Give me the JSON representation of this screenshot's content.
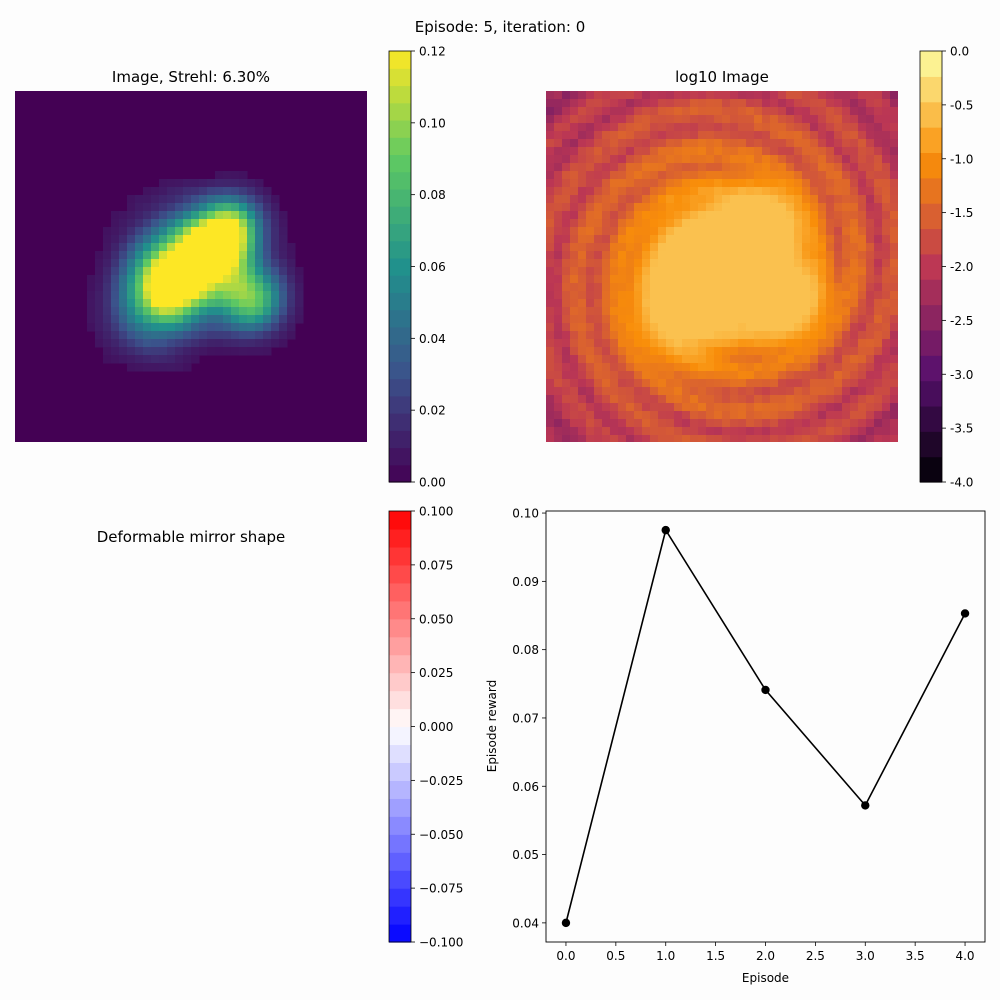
{
  "figure": {
    "suptitle": "Episode: 5, iteration: 0"
  },
  "panels": {
    "image": {
      "title": "Image, Strehl: 6.30%",
      "colormap": "viridis",
      "colorbar": {
        "min": 0.0,
        "max": 0.12,
        "ticks": [
          "0.00",
          "0.02",
          "0.04",
          "0.06",
          "0.08",
          "0.10",
          "0.12"
        ],
        "tick_values": [
          0.0,
          0.02,
          0.04,
          0.06,
          0.08,
          0.1,
          0.12
        ]
      }
    },
    "log_image": {
      "title": "log10 Image",
      "colormap": "inferno",
      "colorbar": {
        "min": -4.0,
        "max": 0.0,
        "ticks": [
          "0.0",
          "-0.5",
          "-1.0",
          "-1.5",
          "-2.0",
          "-2.5",
          "-3.0",
          "-3.5",
          "-4.0"
        ],
        "tick_values": [
          0.0,
          -0.5,
          -1.0,
          -1.5,
          -2.0,
          -2.5,
          -3.0,
          -3.5,
          -4.0
        ]
      }
    },
    "mirror": {
      "title": "Deformable mirror shape",
      "colormap": "bwr",
      "colorbar": {
        "min": -0.1,
        "max": 0.1,
        "ticks": [
          "0.100",
          "0.075",
          "0.050",
          "0.025",
          "0.000",
          "−0.025",
          "−0.050",
          "−0.075",
          "−0.100"
        ],
        "tick_values": [
          0.1,
          0.075,
          0.05,
          0.025,
          0.0,
          -0.025,
          -0.05,
          -0.075,
          -0.1
        ]
      }
    }
  },
  "chart_data": {
    "type": "line",
    "title": "",
    "xlabel": "Episode",
    "ylabel": "Episode reward",
    "x": [
      0,
      1,
      2,
      3,
      4
    ],
    "series": [
      {
        "values": [
          0.04,
          0.0975,
          0.0741,
          0.0572,
          0.0853
        ],
        "color": "#000000",
        "marker": "circle"
      }
    ],
    "xlim": [
      -0.2,
      4.2
    ],
    "ylim": [
      0.0372,
      0.1003
    ],
    "xticks": [
      "0.0",
      "0.5",
      "1.0",
      "1.5",
      "2.0",
      "2.5",
      "3.0",
      "3.5",
      "4.0"
    ],
    "xtick_values": [
      0,
      0.5,
      1,
      1.5,
      2,
      2.5,
      3,
      3.5,
      4
    ],
    "yticks": [
      "0.04",
      "0.05",
      "0.06",
      "0.07",
      "0.08",
      "0.09",
      "0.10"
    ],
    "ytick_values": [
      0.04,
      0.05,
      0.06,
      0.07,
      0.08,
      0.09,
      0.1
    ],
    "grid": false
  }
}
